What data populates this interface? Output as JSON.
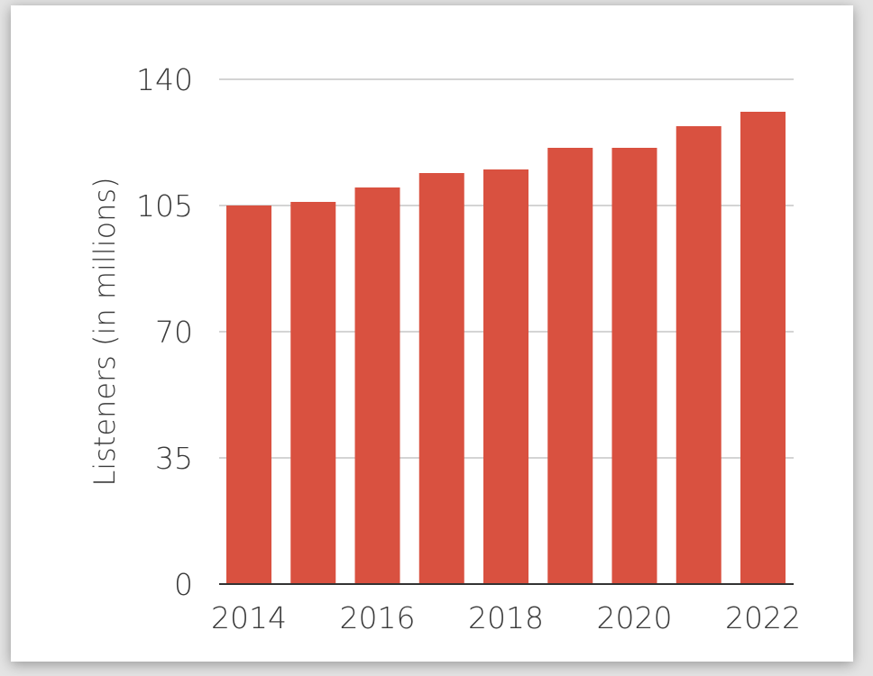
{
  "colors": {
    "bar": "#d95140",
    "grid": "#d4d4d4",
    "axis": "#333333",
    "text": "#3a3a3a",
    "background": "#ffffff"
  },
  "chart_data": {
    "type": "bar",
    "title": "",
    "xlabel": "",
    "ylabel": "Listeners (in millions)",
    "categories": [
      "2014",
      "2015",
      "2016",
      "2017",
      "2018",
      "2019",
      "2020",
      "2021",
      "2022"
    ],
    "x_tick_labels": [
      "2014",
      "2016",
      "2018",
      "2020",
      "2022"
    ],
    "values": [
      105,
      106,
      110,
      114,
      115,
      121,
      121,
      127,
      131
    ],
    "ylim": [
      0,
      140
    ],
    "y_ticks": [
      0,
      35,
      70,
      105,
      140
    ],
    "y_tick_labels": [
      "0",
      "35",
      "70",
      "105",
      "140"
    ],
    "grid": true,
    "legend": "none"
  }
}
